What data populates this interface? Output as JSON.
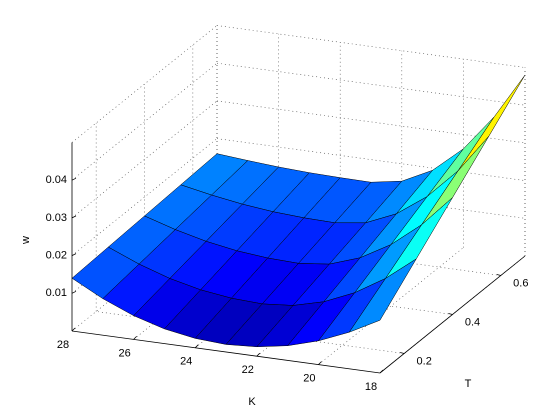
{
  "chart_data": {
    "type": "surface",
    "x_label": "K",
    "y_label": "T",
    "z_label": "w",
    "x": [
      28,
      27,
      26,
      25,
      24,
      23,
      22,
      21,
      20,
      19,
      18
    ],
    "y": [
      0.1,
      0.25,
      0.4,
      0.55,
      0.7
    ],
    "values": [
      [
        0.014,
        0.0097,
        0.0063,
        0.0039,
        0.0025,
        0.002,
        0.0025,
        0.0039,
        0.0063,
        0.0097,
        0.014
      ],
      [
        0.0145,
        0.0111,
        0.0084,
        0.0065,
        0.0054,
        0.005,
        0.0057,
        0.0078,
        0.0113,
        0.0162,
        0.0225
      ],
      [
        0.015,
        0.0125,
        0.0105,
        0.0091,
        0.0083,
        0.008,
        0.0089,
        0.0117,
        0.0163,
        0.0227,
        0.031
      ],
      [
        0.0155,
        0.0139,
        0.0126,
        0.0117,
        0.0112,
        0.011,
        0.0121,
        0.0156,
        0.0213,
        0.0292,
        0.0395
      ],
      [
        0.016,
        0.0153,
        0.0147,
        0.0143,
        0.0141,
        0.014,
        0.0154,
        0.0194,
        0.0262,
        0.0358,
        0.048
      ]
    ],
    "xlim": [
      18,
      28
    ],
    "ylim": [
      0.1,
      0.7
    ],
    "zlim": [
      0,
      0.05
    ],
    "xticks": [
      18,
      20,
      22,
      24,
      26,
      28
    ],
    "yticks": [
      0.2,
      0.4,
      0.6
    ],
    "zticks": [
      0.01,
      0.02,
      0.03,
      0.04
    ],
    "grid": true,
    "colormap": "jet",
    "clim": [
      0,
      0.06
    ],
    "edge_color": "#000000"
  }
}
